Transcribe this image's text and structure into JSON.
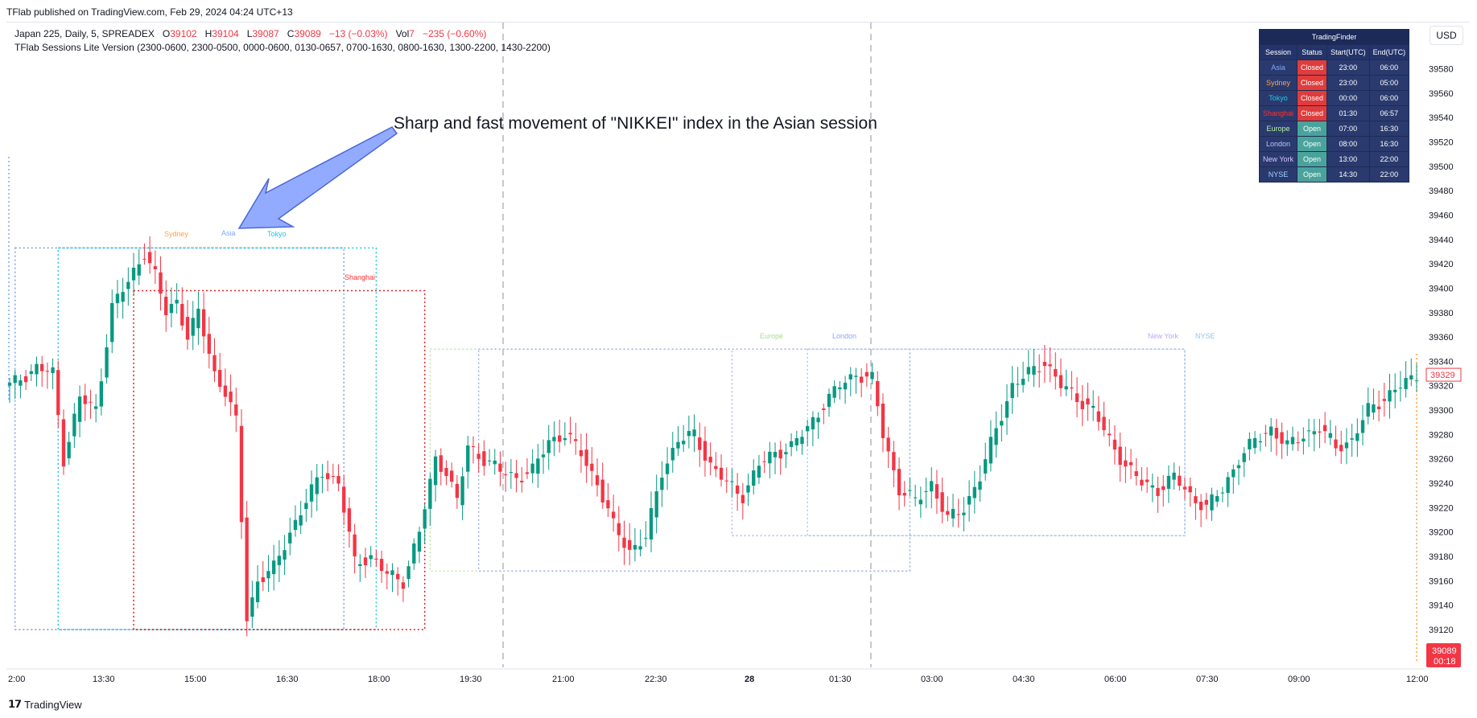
{
  "topline": "TFlab published on TradingView.com, Feb 29, 2024 04:24 UTC+13",
  "legend": {
    "symbol": "Japan 225, Daily, 5, SPREADEX",
    "o_label": "O",
    "o_value": "39102",
    "h_label": "H",
    "h_value": "39104",
    "l_label": "L",
    "l_value": "39087",
    "c_label": "C",
    "c_value": "39089",
    "change": "−13 (−0.03%)",
    "vol_label": "Vol",
    "vol_value": "7",
    "vol_change": "−235 (−0.60%)",
    "indicator": "TFlab Sessions Lite Version (2300-0600, 2300-0500, 0000-0600, 0130-0657, 0700-1630, 0800-1630, 1300-2200, 1430-2200)"
  },
  "currency_button": "USD",
  "footer_brand": "TradingView",
  "table": {
    "title": "TradingFinder",
    "headers": [
      "Session",
      "Status",
      "Start(UTC)",
      "End(UTC)"
    ],
    "rows": [
      {
        "session": "Asia",
        "status": "Closed",
        "start": "23:00",
        "end": "06:00",
        "color": "#7fa8ff"
      },
      {
        "session": "Sydney",
        "status": "Closed",
        "start": "23:00",
        "end": "05:00",
        "color": "#ffa24c"
      },
      {
        "session": "Tokyo",
        "status": "Closed",
        "start": "00:00",
        "end": "06:00",
        "color": "#1ec8e0"
      },
      {
        "session": "Shanghai",
        "status": "Closed",
        "start": "01:30",
        "end": "06:57",
        "color": "#ff3030"
      },
      {
        "session": "Europe",
        "status": "Open",
        "start": "07:00",
        "end": "16:30",
        "color": "#b6f0a0"
      },
      {
        "session": "London",
        "status": "Open",
        "start": "08:00",
        "end": "16:30",
        "color": "#b5c7ff"
      },
      {
        "session": "New York",
        "status": "Open",
        "start": "13:00",
        "end": "22:00",
        "color": "#d6c6ff"
      },
      {
        "session": "NYSE",
        "status": "Open",
        "start": "14:30",
        "end": "22:00",
        "color": "#9fd6ff"
      }
    ]
  },
  "chart_data": {
    "type": "candlestick",
    "title": "",
    "ylim": [
      39100,
      39600
    ],
    "y_ticks": [
      39120,
      39140,
      39160,
      39180,
      39200,
      39220,
      39240,
      39260,
      39280,
      39300,
      39320,
      39340,
      39360,
      39380,
      39400,
      39420,
      39440,
      39460,
      39480,
      39500,
      39520,
      39540,
      39560,
      39580
    ],
    "x_ticks": [
      "2:00",
      "13:30",
      "15:00",
      "16:30",
      "18:00",
      "19:30",
      "21:00",
      "22:30",
      "28",
      "01:30",
      "03:00",
      "04:30",
      "06:00",
      "07:30",
      "09:00",
      "12:00"
    ],
    "x_tick_bold": "28",
    "path_points": [
      [
        0,
        39320
      ],
      [
        5,
        39335
      ],
      [
        8,
        39330
      ],
      [
        10,
        39260
      ],
      [
        13,
        39310
      ],
      [
        16,
        39300
      ],
      [
        19,
        39385
      ],
      [
        22,
        39405
      ],
      [
        25,
        39430
      ],
      [
        27,
        39410
      ],
      [
        29,
        39380
      ],
      [
        31,
        39390
      ],
      [
        33,
        39360
      ],
      [
        35,
        39380
      ],
      [
        38,
        39330
      ],
      [
        40,
        39315
      ],
      [
        42,
        39290
      ],
      [
        44,
        39130
      ],
      [
        46,
        39160
      ],
      [
        49,
        39170
      ],
      [
        52,
        39200
      ],
      [
        55,
        39225
      ],
      [
        58,
        39250
      ],
      [
        61,
        39240
      ],
      [
        64,
        39175
      ],
      [
        67,
        39180
      ],
      [
        70,
        39165
      ],
      [
        73,
        39160
      ],
      [
        76,
        39200
      ],
      [
        79,
        39260
      ],
      [
        81,
        39250
      ],
      [
        83,
        39225
      ],
      [
        85,
        39270
      ],
      [
        88,
        39260
      ],
      [
        91,
        39250
      ],
      [
        94,
        39245
      ],
      [
        97,
        39250
      ],
      [
        100,
        39275
      ],
      [
        103,
        39280
      ],
      [
        106,
        39265
      ],
      [
        109,
        39240
      ],
      [
        112,
        39205
      ],
      [
        115,
        39185
      ],
      [
        118,
        39195
      ],
      [
        121,
        39250
      ],
      [
        124,
        39275
      ],
      [
        127,
        39280
      ],
      [
        130,
        39255
      ],
      [
        133,
        39240
      ],
      [
        136,
        39230
      ],
      [
        139,
        39255
      ],
      [
        142,
        39265
      ],
      [
        145,
        39270
      ],
      [
        148,
        39285
      ],
      [
        151,
        39305
      ],
      [
        154,
        39320
      ],
      [
        157,
        39330
      ],
      [
        160,
        39325
      ],
      [
        162,
        39280
      ],
      [
        165,
        39235
      ],
      [
        168,
        39225
      ],
      [
        171,
        39240
      ],
      [
        174,
        39210
      ],
      [
        177,
        39220
      ],
      [
        180,
        39245
      ],
      [
        183,
        39285
      ],
      [
        186,
        39320
      ],
      [
        189,
        39330
      ],
      [
        192,
        39340
      ],
      [
        195,
        39320
      ],
      [
        198,
        39310
      ],
      [
        201,
        39300
      ],
      [
        204,
        39275
      ],
      [
        207,
        39255
      ],
      [
        210,
        39240
      ],
      [
        213,
        39235
      ],
      [
        216,
        39245
      ],
      [
        219,
        39230
      ],
      [
        222,
        39220
      ],
      [
        225,
        39235
      ],
      [
        228,
        39260
      ],
      [
        231,
        39275
      ],
      [
        234,
        39285
      ],
      [
        237,
        39270
      ],
      [
        240,
        39280
      ],
      [
        243,
        39285
      ],
      [
        246,
        39270
      ],
      [
        249,
        39275
      ],
      [
        252,
        39300
      ],
      [
        255,
        39310
      ],
      [
        258,
        39320
      ],
      [
        260,
        39325
      ],
      [
        261,
        39329
      ]
    ],
    "last_price": "39329",
    "current_close": "39089",
    "countdown": "00:18",
    "annotation": "Sharp and fast movement of \"NIKKEI\" index in the Asian session",
    "session_labels": {
      "sydney": "Sydney",
      "asia": "Asia",
      "tokyo": "Tokyo",
      "shanghai": "Shanghai",
      "europe": "Europe",
      "london": "London",
      "newyork": "New York",
      "nyse": "NYSE"
    },
    "up_color": "#089981",
    "down_color": "#f23645"
  }
}
